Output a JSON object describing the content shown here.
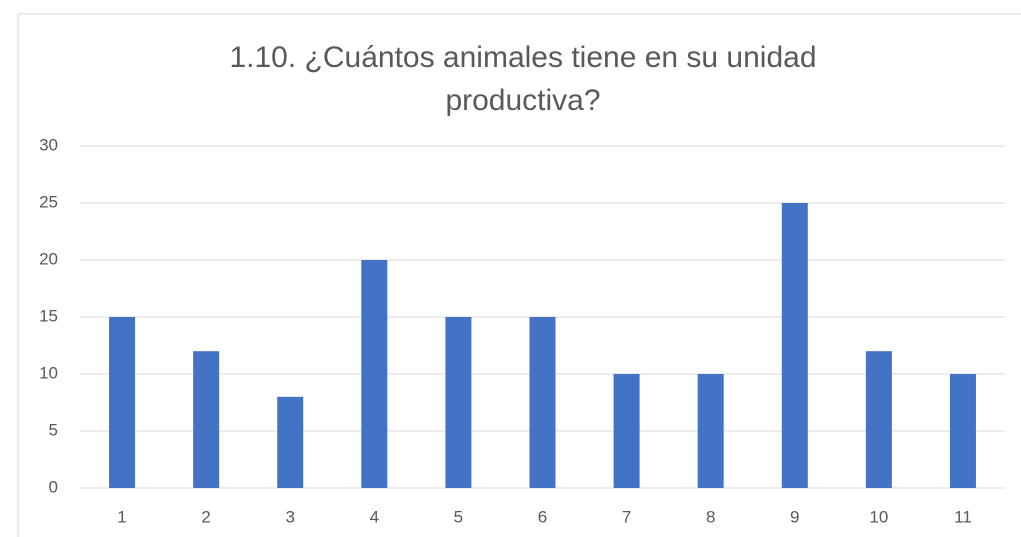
{
  "chart_data": {
    "type": "bar",
    "title": "1.10. ¿Cuántos animales tiene en su unidad productiva?",
    "categories": [
      "1",
      "2",
      "3",
      "4",
      "5",
      "6",
      "7",
      "8",
      "9",
      "10",
      "11"
    ],
    "values": [
      15,
      12,
      8,
      20,
      15,
      15,
      10,
      10,
      25,
      12,
      10
    ],
    "color": "#4472c4",
    "ylim": [
      0,
      30
    ],
    "yticks": [
      0,
      5,
      10,
      15,
      20,
      25,
      30
    ],
    "grid": true
  }
}
